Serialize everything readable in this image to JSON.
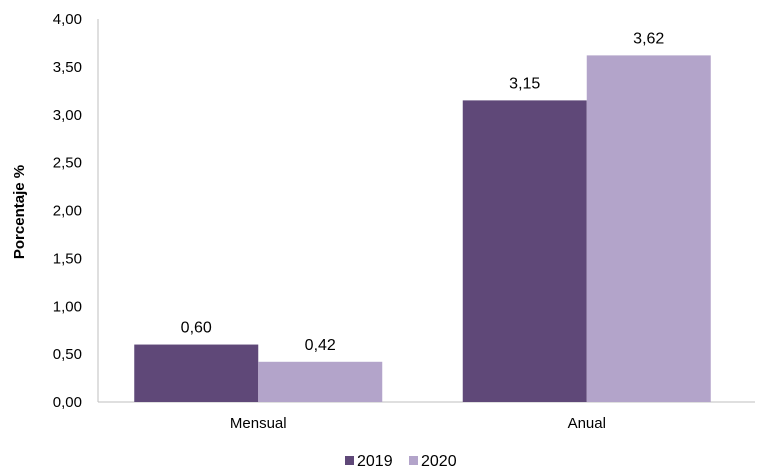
{
  "chart_data": {
    "type": "bar",
    "categories": [
      "Mensual",
      "Anual"
    ],
    "series": [
      {
        "name": "2019",
        "values": [
          0.6,
          3.15
        ],
        "labels": [
          "0,60",
          "3,15"
        ],
        "color": "#5f4878"
      },
      {
        "name": "2020",
        "values": [
          0.42,
          3.62
        ],
        "labels": [
          "0,42",
          "3,62"
        ],
        "color": "#b3a4ca"
      }
    ],
    "title": "",
    "xlabel": "",
    "ylabel": "Porcentaje %",
    "ylim": [
      0,
      4
    ],
    "yticks": [
      0,
      0.5,
      1,
      1.5,
      2,
      2.5,
      3,
      3.5,
      4
    ],
    "ytick_labels": [
      "0,00",
      "0,50",
      "1,00",
      "1,50",
      "2,00",
      "2,50",
      "3,00",
      "3,50",
      "4,00"
    ],
    "grid": false,
    "legend_position": "bottom"
  }
}
